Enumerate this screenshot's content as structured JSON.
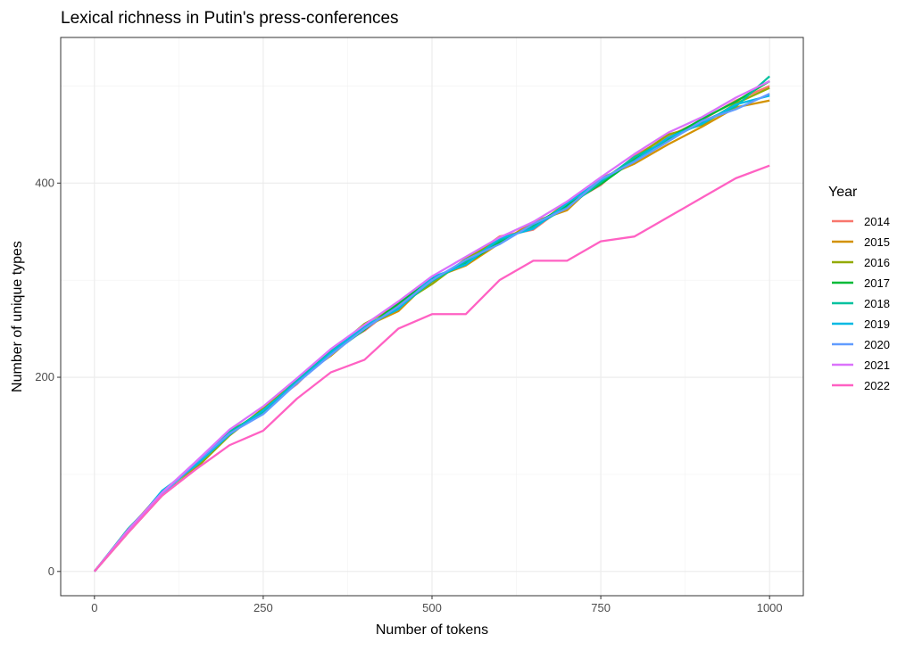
{
  "chart_data": {
    "type": "line",
    "title": "Lexical richness in Putin's press-conferences",
    "xlabel": "Number of tokens",
    "ylabel": "Number of unique types",
    "xlim": [
      -50,
      1050
    ],
    "ylim": [
      -25,
      550
    ],
    "x_ticks": [
      0,
      250,
      500,
      750,
      1000
    ],
    "y_ticks": [
      0,
      200,
      400
    ],
    "grid": true,
    "legend_title": "Year",
    "legend_position": "right",
    "x": [
      0,
      50,
      100,
      150,
      200,
      250,
      300,
      350,
      400,
      450,
      500,
      550,
      600,
      650,
      700,
      750,
      800,
      850,
      900,
      950,
      1000
    ],
    "series": [
      {
        "name": "2014",
        "color": "#F8766D",
        "values": [
          0,
          41,
          79,
          112,
          140,
          167,
          193,
          228,
          248,
          275,
          298,
          320,
          345,
          352,
          378,
          398,
          428,
          448,
          465,
          485,
          500
        ]
      },
      {
        "name": "2015",
        "color": "#D39200",
        "values": [
          0,
          43,
          82,
          108,
          145,
          163,
          198,
          222,
          252,
          268,
          302,
          315,
          338,
          360,
          372,
          405,
          420,
          440,
          458,
          478,
          485
        ]
      },
      {
        "name": "2016",
        "color": "#93AA00",
        "values": [
          0,
          40,
          78,
          106,
          140,
          168,
          196,
          226,
          255,
          274,
          296,
          322,
          342,
          354,
          380,
          402,
          426,
          450,
          460,
          482,
          498
        ]
      },
      {
        "name": "2017",
        "color": "#00BA38",
        "values": [
          0,
          42,
          81,
          111,
          143,
          166,
          194,
          224,
          249,
          276,
          301,
          317,
          339,
          357,
          377,
          399,
          424,
          446,
          466,
          484,
          505
        ]
      },
      {
        "name": "2018",
        "color": "#00C19F",
        "values": [
          0,
          44,
          80,
          110,
          144,
          164,
          197,
          227,
          251,
          271,
          299,
          319,
          341,
          355,
          375,
          401,
          427,
          444,
          463,
          479,
          510
        ]
      },
      {
        "name": "2019",
        "color": "#00B9E3",
        "values": [
          0,
          41,
          83,
          109,
          141,
          166,
          195,
          225,
          253,
          270,
          303,
          316,
          343,
          353,
          379,
          403,
          423,
          447,
          461,
          481,
          490
        ]
      },
      {
        "name": "2020",
        "color": "#619CFF",
        "values": [
          0,
          42,
          79,
          112,
          142,
          162,
          194,
          223,
          250,
          273,
          300,
          321,
          337,
          358,
          374,
          404,
          422,
          443,
          464,
          476,
          492
        ]
      },
      {
        "name": "2021",
        "color": "#DB72FB",
        "values": [
          0,
          43,
          81,
          113,
          146,
          170,
          199,
          229,
          254,
          278,
          304,
          324,
          344,
          360,
          381,
          406,
          430,
          452,
          468,
          488,
          505
        ]
      },
      {
        "name": "2022",
        "color": "#FF61C3",
        "values": [
          0,
          40,
          78,
          105,
          130,
          145,
          178,
          205,
          218,
          250,
          265,
          265,
          300,
          320,
          320,
          340,
          345,
          365,
          385,
          405,
          418
        ]
      }
    ]
  }
}
